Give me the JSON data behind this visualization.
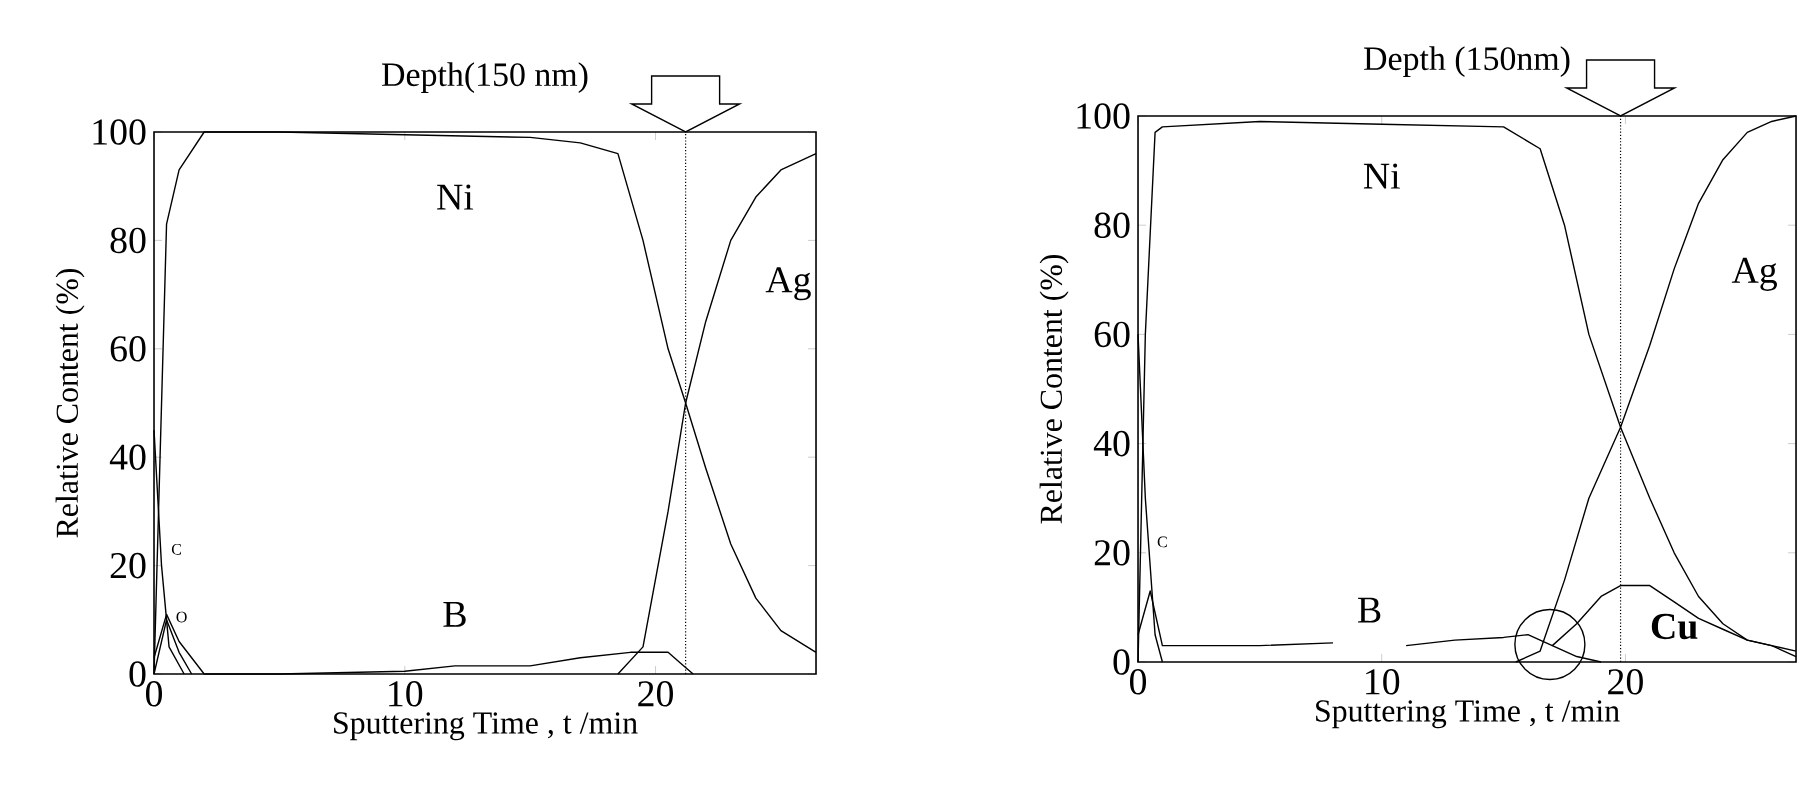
{
  "chart_data": [
    {
      "type": "line",
      "title": "Depth(150 nm)",
      "xlabel": "Sputtering Time  , t /min",
      "ylabel": "Relative Content (%)",
      "xlim": [
        0,
        26.4
      ],
      "ylim": [
        0,
        100
      ],
      "xticks": [
        0,
        10,
        20
      ],
      "yticks": [
        0,
        20,
        40,
        60,
        80,
        100
      ],
      "ref_lines": [
        {
          "axis": "x",
          "value": 21.2,
          "color": "#000000",
          "line_style": "dotted"
        }
      ],
      "series": [
        {
          "name": "Ni",
          "color": "#000000",
          "x": [
            0,
            0.5,
            1,
            2,
            5,
            10,
            15,
            17,
            18.5,
            19.5,
            20.5,
            21.2,
            22,
            23,
            24,
            25,
            26.4
          ],
          "values": [
            0,
            83,
            93,
            100,
            100,
            99.5,
            99,
            98,
            96,
            80,
            60,
            50,
            38,
            24,
            14,
            8,
            4
          ]
        },
        {
          "name": "Ag",
          "color": "#000000",
          "x": [
            18.5,
            19.5,
            20.5,
            21.2,
            22,
            23,
            24,
            25,
            26.4
          ],
          "values": [
            0,
            5,
            30,
            50,
            65,
            80,
            88,
            93,
            96
          ]
        },
        {
          "name": "B",
          "color": "#000000",
          "x": [
            0,
            0.5,
            1,
            2,
            5,
            10,
            12,
            15,
            17,
            19,
            20.5,
            21,
            21.5
          ],
          "values": [
            3,
            11,
            6,
            0,
            0,
            0.5,
            1.5,
            1.5,
            3,
            4,
            4,
            2,
            0
          ]
        },
        {
          "name": "C",
          "color": "#000000",
          "x": [
            0,
            0.3,
            0.6,
            1.2
          ],
          "values": [
            45,
            20,
            5,
            0
          ]
        },
        {
          "name": "O",
          "color": "#000000",
          "x": [
            0,
            0.5,
            1,
            1.5
          ],
          "values": [
            0,
            10,
            4,
            0
          ]
        }
      ]
    },
    {
      "type": "line",
      "title": "Depth (150nm)",
      "xlabel": "Sputtering Time  , t /min",
      "ylabel": "Relative Content (%)",
      "xlim": [
        0,
        27
      ],
      "ylim": [
        0,
        100
      ],
      "xticks": [
        0,
        10,
        20
      ],
      "yticks": [
        0,
        20,
        40,
        60,
        80,
        100
      ],
      "ref_lines": [
        {
          "axis": "x",
          "value": 19.8,
          "color": "#000000",
          "line_style": "dotted"
        }
      ],
      "series": [
        {
          "name": "Ni",
          "color": "#000000",
          "x": [
            0,
            0.3,
            0.7,
            1,
            5,
            10,
            15,
            16.5,
            17.5,
            18.5,
            19.8,
            21,
            22,
            23,
            24,
            25,
            26,
            27
          ],
          "values": [
            0,
            60,
            97,
            98,
            99,
            98.5,
            98,
            94,
            80,
            60,
            43,
            30,
            20,
            12,
            7,
            4,
            3,
            1
          ]
        },
        {
          "name": "Ag",
          "color": "#000000",
          "x": [
            15.5,
            16.5,
            17.5,
            18.5,
            19.8,
            21,
            22,
            23,
            24,
            25,
            26,
            27
          ],
          "values": [
            0,
            2,
            15,
            30,
            43,
            58,
            72,
            84,
            92,
            97,
            99,
            100
          ]
        },
        {
          "name": "B",
          "color": "#000000",
          "x": [
            0,
            0.5,
            1,
            3,
            5,
            8,
            9.5,
            11,
            13,
            15,
            16,
            17,
            18,
            19
          ],
          "values": [
            5,
            13,
            3,
            3,
            3,
            3.5,
            null,
            3,
            4,
            4.5,
            5,
            3,
            1,
            0
          ]
        },
        {
          "name": "Cu",
          "color": "#000000",
          "x": [
            17,
            18,
            19,
            19.8,
            21,
            22,
            23,
            24,
            25,
            26,
            27
          ],
          "values": [
            3,
            7,
            12,
            14,
            14,
            11,
            8,
            6,
            4,
            3,
            2
          ]
        },
        {
          "name": "C",
          "color": "#000000",
          "x": [
            0,
            0.3,
            0.7,
            1
          ],
          "values": [
            60,
            30,
            5,
            0
          ]
        }
      ]
    }
  ]
}
